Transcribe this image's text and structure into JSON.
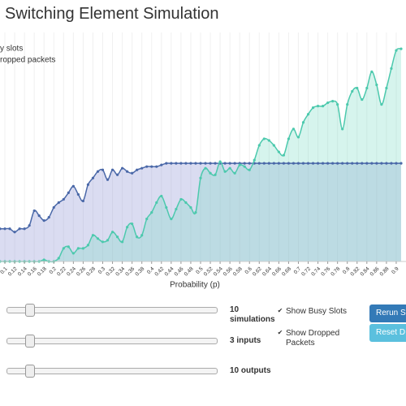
{
  "chart_data": {
    "type": "line",
    "title": "Switching Element Simulation",
    "xlabel": "Probability (p)",
    "x": [
      0.09,
      0.1,
      0.11,
      0.12,
      0.13,
      0.14,
      0.15,
      0.16,
      0.17,
      0.18,
      0.19,
      0.2,
      0.21,
      0.22,
      0.23,
      0.24,
      0.25,
      0.26,
      0.27,
      0.28,
      0.29,
      0.3,
      0.31,
      0.32,
      0.33,
      0.34,
      0.35,
      0.36,
      0.37,
      0.38,
      0.39,
      0.4,
      0.41,
      0.42,
      0.43,
      0.44,
      0.45,
      0.46,
      0.47,
      0.48,
      0.49,
      0.5,
      0.51,
      0.52,
      0.53,
      0.54,
      0.55,
      0.56,
      0.57,
      0.58,
      0.59,
      0.6,
      0.61,
      0.62,
      0.63,
      0.64,
      0.65,
      0.66,
      0.67,
      0.68,
      0.69,
      0.7,
      0.71,
      0.72,
      0.73,
      0.74,
      0.75,
      0.76,
      0.77,
      0.78,
      0.79,
      0.8,
      0.81,
      0.82,
      0.83,
      0.84,
      0.85,
      0.86,
      0.87,
      0.88,
      0.89,
      0.9,
      0.91
    ],
    "xlim": [
      0.09,
      0.92
    ],
    "xticks": [
      0.1,
      0.12,
      0.14,
      0.16,
      0.18,
      0.2,
      0.22,
      0.24,
      0.26,
      0.28,
      0.3,
      0.32,
      0.34,
      0.36,
      0.38,
      0.4,
      0.42,
      0.44,
      0.46,
      0.48,
      0.5,
      0.52,
      0.54,
      0.56,
      0.58,
      0.6,
      0.62,
      0.64,
      0.66,
      0.68,
      0.7,
      0.72,
      0.74,
      0.76,
      0.78,
      0.8,
      0.82,
      0.84,
      0.86,
      0.88,
      0.9
    ],
    "ylim": [
      0,
      7
    ],
    "series": [
      {
        "name": "y slots",
        "color": "#4a68a8",
        "fill": "rgba(150,155,215,0.35)",
        "values": [
          1,
          1,
          1,
          0.9,
          1,
          1,
          1.1,
          1.55,
          1.4,
          1.25,
          1.35,
          1.65,
          1.8,
          1.9,
          2.1,
          2.3,
          2.05,
          1.85,
          2.35,
          2.55,
          2.75,
          2.8,
          2.5,
          2.8,
          2.65,
          2.85,
          2.75,
          2.7,
          2.8,
          2.85,
          2.9,
          2.9,
          2.9,
          2.95,
          3,
          3,
          3,
          3,
          3,
          3,
          3,
          3,
          3,
          3,
          3,
          3,
          3,
          3,
          3,
          3,
          3,
          3,
          3,
          3,
          3,
          3,
          3,
          3,
          3,
          3,
          3,
          3,
          3,
          3,
          3,
          3,
          3,
          3,
          3,
          3,
          3,
          3,
          3,
          3,
          3,
          3,
          3,
          3,
          3,
          3,
          3,
          3,
          3
        ]
      },
      {
        "name": "ropped packets",
        "color": "#4cc9ad",
        "fill": "rgba(120,220,195,0.3)",
        "values": [
          0,
          0,
          0,
          0,
          0,
          0,
          0,
          0,
          0,
          0.05,
          0,
          0,
          0.1,
          0.4,
          0.45,
          0.25,
          0.4,
          0.4,
          0.5,
          0.8,
          0.7,
          0.6,
          0.65,
          0.9,
          0.75,
          0.6,
          1.05,
          1.15,
          0.75,
          0.8,
          1.3,
          1.5,
          1.8,
          2,
          1.65,
          1.3,
          1.6,
          1.9,
          1.8,
          1.65,
          1.5,
          2.55,
          2.85,
          2.7,
          2.65,
          3.05,
          2.75,
          2.85,
          2.7,
          2.95,
          2.9,
          2.8,
          3.1,
          3.55,
          3.75,
          3.7,
          3.55,
          3.35,
          3.25,
          3.75,
          4.05,
          3.8,
          4.25,
          4.5,
          4.7,
          4.75,
          4.75,
          4.85,
          4.9,
          4.8,
          4.05,
          4.8,
          5.2,
          5.3,
          4.95,
          5.3,
          5.8,
          5.4,
          4.8,
          5.3,
          5.9,
          6.45,
          6.5
        ]
      }
    ]
  },
  "controls": {
    "sliders": [
      {
        "value": 10,
        "label": "simulations"
      },
      {
        "value": 3,
        "label": "inputs"
      },
      {
        "value": 10,
        "label": "outputs"
      }
    ],
    "checkboxes": [
      {
        "label": "Show Busy Slots",
        "checked": true
      },
      {
        "label": "Show Dropped Packets",
        "checked": true
      }
    ],
    "buttons": [
      "Rerun Si",
      "Reset D"
    ]
  }
}
